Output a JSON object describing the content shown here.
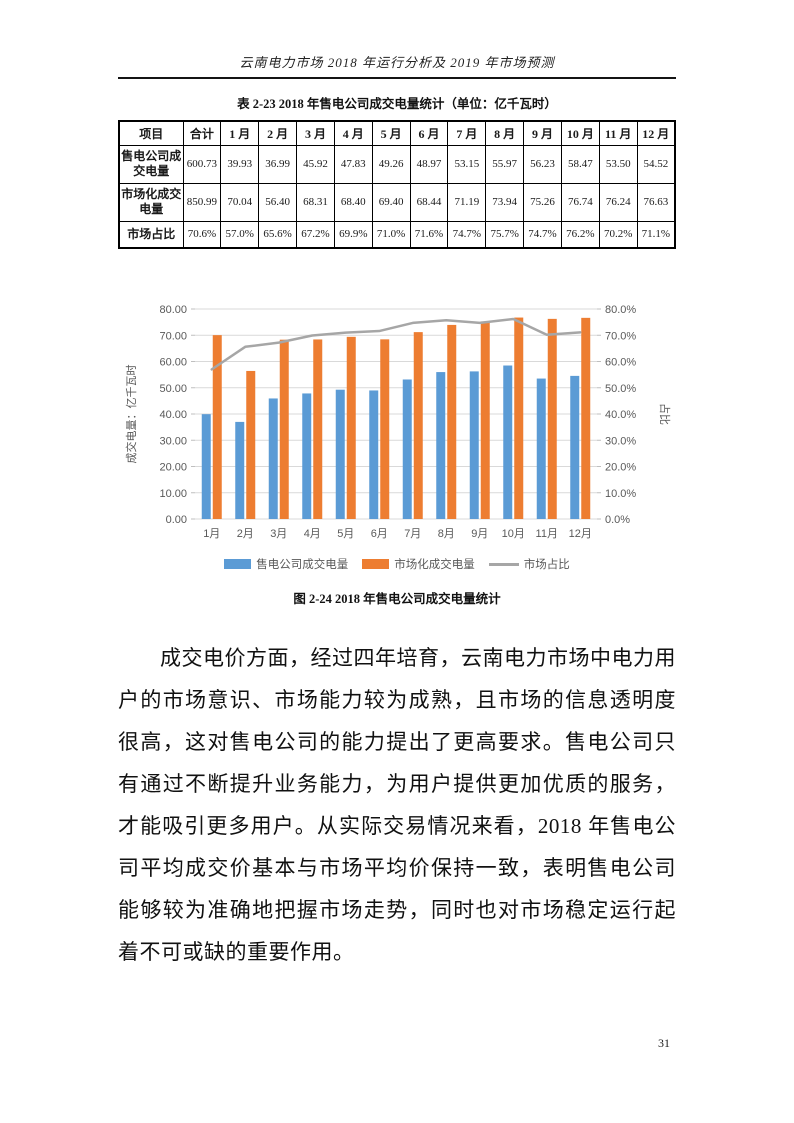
{
  "page": {
    "header_title": "云南电力市场 2018 年运行分析及 2019 年市场预测",
    "page_number": "31"
  },
  "table": {
    "caption": "表 2-23  2018 年售电公司成交电量统计（单位：亿千瓦时）",
    "columns": [
      "项目",
      "合计",
      "1 月",
      "2 月",
      "3 月",
      "4 月",
      "5 月",
      "6 月",
      "7 月",
      "8 月",
      "9 月",
      "10 月",
      "11 月",
      "12 月"
    ],
    "rows": [
      {
        "label": "售电公司成交电量",
        "values": [
          "600.73",
          "39.93",
          "36.99",
          "45.92",
          "47.83",
          "49.26",
          "48.97",
          "53.15",
          "55.97",
          "56.23",
          "58.47",
          "53.50",
          "54.52"
        ]
      },
      {
        "label": "市场化成交电量",
        "values": [
          "850.99",
          "70.04",
          "56.40",
          "68.31",
          "68.40",
          "69.40",
          "68.44",
          "71.19",
          "73.94",
          "75.26",
          "76.74",
          "76.24",
          "76.63"
        ]
      },
      {
        "label": "市场占比",
        "values": [
          "70.6%",
          "57.0%",
          "65.6%",
          "67.2%",
          "69.9%",
          "71.0%",
          "71.6%",
          "74.7%",
          "75.7%",
          "74.7%",
          "76.2%",
          "70.2%",
          "71.1%"
        ]
      }
    ]
  },
  "chart_data": {
    "type": "bar+line",
    "title": "2018年售电公司成交电量统计",
    "categories": [
      "1月",
      "2月",
      "3月",
      "4月",
      "5月",
      "6月",
      "7月",
      "8月",
      "9月",
      "10月",
      "11月",
      "12月"
    ],
    "series": [
      {
        "name": "售电公司成交电量",
        "type": "bar",
        "axis": "left",
        "color": "#5B9BD5",
        "values": [
          39.93,
          36.99,
          45.92,
          47.83,
          49.26,
          48.97,
          53.15,
          55.97,
          56.23,
          58.47,
          53.5,
          54.52
        ]
      },
      {
        "name": "市场化成交电量",
        "type": "bar",
        "axis": "left",
        "color": "#ED7D31",
        "values": [
          70.04,
          56.4,
          68.31,
          68.4,
          69.4,
          68.44,
          71.19,
          73.94,
          75.26,
          76.74,
          76.24,
          76.63
        ]
      },
      {
        "name": "市场占比",
        "type": "line",
        "axis": "right",
        "color": "#A6A6A6",
        "values": [
          57.0,
          65.6,
          67.2,
          69.9,
          71.0,
          71.6,
          74.7,
          75.7,
          74.7,
          76.2,
          70.2,
          71.1
        ]
      }
    ],
    "left_axis": {
      "label": "成交电量：亿千瓦时",
      "min": 0,
      "max": 80,
      "step": 10,
      "ticks": [
        "0.00",
        "10.00",
        "20.00",
        "30.00",
        "40.00",
        "50.00",
        "60.00",
        "70.00",
        "80.00"
      ]
    },
    "right_axis": {
      "label": "占比",
      "min": 0,
      "max": 80,
      "step": 10,
      "ticks": [
        "0.0%",
        "10.0%",
        "20.0%",
        "30.0%",
        "40.0%",
        "50.0%",
        "60.0%",
        "70.0%",
        "80.0%"
      ]
    },
    "legend_position": "bottom",
    "grid": true,
    "gridline_color": "#D9D9D9"
  },
  "figure": {
    "caption": "图 2-24  2018 年售电公司成交电量统计"
  },
  "body": {
    "paragraph": "成交电价方面，经过四年培育，云南电力市场中电力用户的市场意识、市场能力较为成熟，且市场的信息透明度很高，这对售电公司的能力提出了更高要求。售电公司只有通过不断提升业务能力，为用户提供更加优质的服务，才能吸引更多用户。从实际交易情况来看，2018 年售电公司平均成交价基本与市场平均价保持一致，表明售电公司能够较为准确地把握市场走势，同时也对市场稳定运行起着不可或缺的重要作用。"
  }
}
